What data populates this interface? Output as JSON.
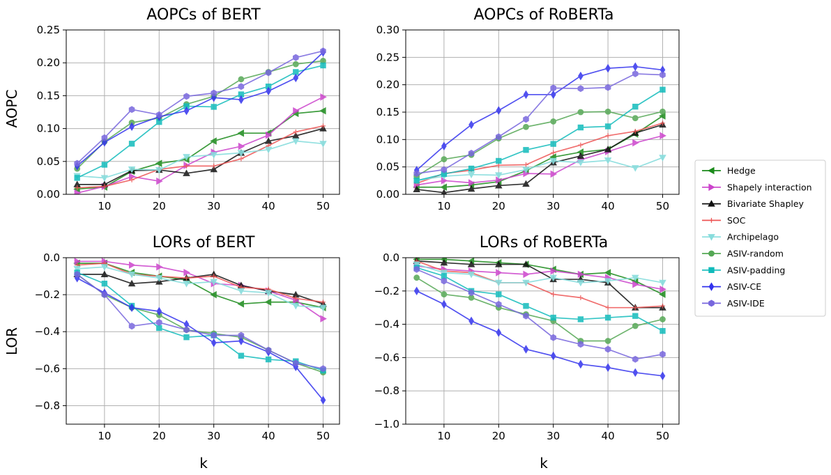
{
  "chart_data": [
    {
      "type": "line",
      "title": "AOPCs of BERT",
      "xlabel": "",
      "ylabel": "AOPC",
      "xlim": [
        3,
        53
      ],
      "ylim": [
        0,
        0.25
      ],
      "xticks": [
        10,
        20,
        30,
        40,
        50
      ],
      "xtick_labels": [
        "10",
        "20",
        "30",
        "40",
        "50"
      ],
      "yticks": [
        0,
        0.05,
        0.1,
        0.15,
        0.2,
        0.25
      ],
      "ytick_labels": [
        "0.00",
        "0.05",
        "0.10",
        "0.15",
        "0.20",
        "0.25"
      ],
      "grid": true,
      "x": [
        5,
        10,
        15,
        20,
        25,
        30,
        35,
        40,
        45,
        50
      ],
      "series": [
        {
          "name": "Hedge",
          "values": [
            0.008,
            0.011,
            0.035,
            0.047,
            0.053,
            0.081,
            0.093,
            0.093,
            0.123,
            0.127
          ]
        },
        {
          "name": "Shapely interaction",
          "values": [
            0.002,
            0.012,
            0.027,
            0.02,
            0.044,
            0.064,
            0.073,
            0.09,
            0.127,
            0.148
          ]
        },
        {
          "name": "Bivariate Shapley",
          "values": [
            0.015,
            0.015,
            0.036,
            0.037,
            0.032,
            0.038,
            0.063,
            0.081,
            0.089,
            0.1
          ]
        },
        {
          "name": "SOC",
          "values": [
            0.01,
            0.012,
            0.022,
            0.038,
            0.043,
            0.043,
            0.054,
            0.074,
            0.095,
            0.104
          ]
        },
        {
          "name": "Archipelago",
          "values": [
            0.028,
            0.025,
            0.038,
            0.037,
            0.057,
            0.06,
            0.063,
            0.068,
            0.081,
            0.077
          ]
        },
        {
          "name": "ASIV-random",
          "values": [
            0.039,
            0.08,
            0.109,
            0.116,
            0.137,
            0.149,
            0.175,
            0.186,
            0.198,
            0.203
          ]
        },
        {
          "name": "ASIV-padding",
          "values": [
            0.025,
            0.045,
            0.077,
            0.11,
            0.134,
            0.133,
            0.152,
            0.164,
            0.186,
            0.196
          ]
        },
        {
          "name": "ASIV-CE",
          "values": [
            0.043,
            0.079,
            0.103,
            0.118,
            0.127,
            0.147,
            0.144,
            0.157,
            0.177,
            0.216
          ]
        },
        {
          "name": "ASIV-IDE",
          "values": [
            0.047,
            0.086,
            0.129,
            0.121,
            0.149,
            0.154,
            0.164,
            0.185,
            0.208,
            0.218
          ]
        }
      ]
    },
    {
      "type": "line",
      "title": "AOPCs of RoBERTa",
      "xlabel": "",
      "ylabel": "",
      "xlim": [
        3,
        53
      ],
      "ylim": [
        0,
        0.3
      ],
      "xticks": [
        10,
        20,
        30,
        40,
        50
      ],
      "xtick_labels": [
        "10",
        "20",
        "30",
        "40",
        "50"
      ],
      "yticks": [
        0,
        0.05,
        0.1,
        0.15,
        0.2,
        0.25,
        0.3
      ],
      "ytick_labels": [
        "0.00",
        "0.05",
        "0.10",
        "0.15",
        "0.20",
        "0.25",
        "0.30"
      ],
      "grid": true,
      "x": [
        5,
        10,
        15,
        20,
        25,
        30,
        35,
        40,
        45,
        50
      ],
      "series": [
        {
          "name": "Hedge",
          "values": [
            0.013,
            0.013,
            0.017,
            0.023,
            0.043,
            0.068,
            0.077,
            0.082,
            0.11,
            0.143
          ]
        },
        {
          "name": "Shapely interaction",
          "values": [
            0.017,
            0.025,
            0.021,
            0.026,
            0.038,
            0.037,
            0.063,
            0.078,
            0.094,
            0.107
          ]
        },
        {
          "name": "Bivariate Shapley",
          "values": [
            0.009,
            0.003,
            0.01,
            0.016,
            0.019,
            0.058,
            0.07,
            0.082,
            0.112,
            0.127
          ]
        },
        {
          "name": "SOC",
          "values": [
            0.02,
            0.038,
            0.044,
            0.053,
            0.054,
            0.076,
            0.09,
            0.107,
            0.115,
            0.13
          ]
        },
        {
          "name": "Archipelago",
          "values": [
            0.025,
            0.033,
            0.036,
            0.035,
            0.045,
            0.061,
            0.058,
            0.062,
            0.048,
            0.067
          ]
        },
        {
          "name": "ASIV-random",
          "values": [
            0.033,
            0.064,
            0.072,
            0.102,
            0.123,
            0.133,
            0.15,
            0.151,
            0.139,
            0.151
          ]
        },
        {
          "name": "ASIV-padding",
          "values": [
            0.025,
            0.037,
            0.047,
            0.061,
            0.081,
            0.092,
            0.122,
            0.124,
            0.16,
            0.191
          ]
        },
        {
          "name": "ASIV-CE",
          "values": [
            0.044,
            0.088,
            0.127,
            0.153,
            0.182,
            0.182,
            0.216,
            0.23,
            0.233,
            0.227
          ]
        },
        {
          "name": "ASIV-IDE",
          "values": [
            0.038,
            0.045,
            0.075,
            0.105,
            0.137,
            0.194,
            0.193,
            0.195,
            0.22,
            0.218
          ]
        }
      ]
    },
    {
      "type": "line",
      "title": "LORs of BERT",
      "xlabel": "k",
      "ylabel": "LOR",
      "xlim": [
        3,
        53
      ],
      "ylim": [
        -0.9,
        0
      ],
      "xticks": [
        10,
        20,
        30,
        40,
        50
      ],
      "xtick_labels": [
        "10",
        "20",
        "30",
        "40",
        "50"
      ],
      "yticks": [
        -0.8,
        -0.6,
        -0.4,
        -0.2,
        0.0
      ],
      "ytick_labels": [
        "−0.8",
        "−0.6",
        "−0.4",
        "−0.2",
        "0.0"
      ],
      "grid": true,
      "x": [
        5,
        10,
        15,
        20,
        25,
        30,
        35,
        40,
        45,
        50
      ],
      "series": [
        {
          "name": "Hedge",
          "values": [
            -0.03,
            -0.03,
            -0.08,
            -0.1,
            -0.12,
            -0.2,
            -0.25,
            -0.24,
            -0.24,
            -0.27
          ]
        },
        {
          "name": "Shapely interaction",
          "values": [
            -0.02,
            -0.02,
            -0.04,
            -0.05,
            -0.08,
            -0.14,
            -0.15,
            -0.18,
            -0.23,
            -0.33
          ]
        },
        {
          "name": "Bivariate Shapley",
          "values": [
            -0.09,
            -0.09,
            -0.14,
            -0.13,
            -0.11,
            -0.09,
            -0.15,
            -0.18,
            -0.2,
            -0.25
          ]
        },
        {
          "name": "SOC",
          "values": [
            -0.04,
            -0.03,
            -0.09,
            -0.1,
            -0.11,
            -0.1,
            -0.16,
            -0.17,
            -0.22,
            -0.24
          ]
        },
        {
          "name": "Archipelago",
          "values": [
            -0.06,
            -0.05,
            -0.09,
            -0.11,
            -0.14,
            -0.13,
            -0.18,
            -0.19,
            -0.26,
            -0.27
          ]
        },
        {
          "name": "ASIV-random",
          "values": [
            -0.09,
            -0.2,
            -0.27,
            -0.31,
            -0.39,
            -0.41,
            -0.43,
            -0.5,
            -0.57,
            -0.62
          ]
        },
        {
          "name": "ASIV-padding",
          "values": [
            -0.08,
            -0.14,
            -0.26,
            -0.38,
            -0.43,
            -0.42,
            -0.53,
            -0.55,
            -0.56,
            -0.61
          ]
        },
        {
          "name": "ASIV-CE",
          "values": [
            -0.11,
            -0.19,
            -0.27,
            -0.29,
            -0.36,
            -0.46,
            -0.45,
            -0.51,
            -0.59,
            -0.77
          ]
        },
        {
          "name": "ASIV-IDE",
          "values": [
            -0.09,
            -0.2,
            -0.37,
            -0.35,
            -0.39,
            -0.42,
            -0.42,
            -0.5,
            -0.57,
            -0.6
          ]
        }
      ]
    },
    {
      "type": "line",
      "title": "LORs of RoBERTa",
      "xlabel": "k",
      "ylabel": "",
      "xlim": [
        3,
        53
      ],
      "ylim": [
        -1.0,
        0
      ],
      "xticks": [
        10,
        20,
        30,
        40,
        50
      ],
      "xtick_labels": [
        "10",
        "20",
        "30",
        "40",
        "50"
      ],
      "yticks": [
        -1.0,
        -0.8,
        -0.6,
        -0.4,
        -0.2,
        0.0
      ],
      "ytick_labels": [
        "−1.0",
        "−0.8",
        "−0.6",
        "−0.4",
        "−0.2",
        "0.0"
      ],
      "grid": true,
      "x": [
        5,
        10,
        15,
        20,
        25,
        30,
        35,
        40,
        45,
        50
      ],
      "series": [
        {
          "name": "Hedge",
          "values": [
            -0.01,
            -0.01,
            -0.02,
            -0.03,
            -0.04,
            -0.07,
            -0.1,
            -0.09,
            -0.14,
            -0.22
          ]
        },
        {
          "name": "Shapely interaction",
          "values": [
            -0.05,
            -0.07,
            -0.08,
            -0.09,
            -0.1,
            -0.08,
            -0.1,
            -0.12,
            -0.16,
            -0.19
          ]
        },
        {
          "name": "Bivariate Shapley",
          "values": [
            -0.02,
            -0.03,
            -0.04,
            -0.04,
            -0.04,
            -0.13,
            -0.13,
            -0.15,
            -0.3,
            -0.3
          ]
        },
        {
          "name": "SOC",
          "values": [
            -0.02,
            -0.08,
            -0.09,
            -0.15,
            -0.15,
            -0.22,
            -0.24,
            -0.3,
            -0.3,
            -0.29
          ]
        },
        {
          "name": "Archipelago",
          "values": [
            -0.04,
            -0.09,
            -0.1,
            -0.15,
            -0.15,
            -0.12,
            -0.15,
            -0.14,
            -0.12,
            -0.15
          ]
        },
        {
          "name": "ASIV-random",
          "values": [
            -0.12,
            -0.22,
            -0.24,
            -0.3,
            -0.34,
            -0.38,
            -0.5,
            -0.5,
            -0.41,
            -0.37
          ]
        },
        {
          "name": "ASIV-padding",
          "values": [
            -0.06,
            -0.11,
            -0.2,
            -0.22,
            -0.29,
            -0.36,
            -0.37,
            -0.36,
            -0.35,
            -0.44
          ]
        },
        {
          "name": "ASIV-CE",
          "values": [
            -0.2,
            -0.28,
            -0.38,
            -0.45,
            -0.55,
            -0.59,
            -0.64,
            -0.66,
            -0.69,
            -0.71
          ]
        },
        {
          "name": "ASIV-IDE",
          "values": [
            -0.07,
            -0.14,
            -0.21,
            -0.28,
            -0.35,
            -0.48,
            -0.52,
            -0.55,
            -0.61,
            -0.58
          ]
        }
      ]
    }
  ],
  "legend": {
    "placement": "right",
    "entries": [
      {
        "name": "Hedge",
        "color": "#1a8a1a",
        "marker": "triangle-left"
      },
      {
        "name": "Shapely interaction",
        "color": "#cc44cc",
        "marker": "triangle-right"
      },
      {
        "name": "Bivariate Shapley",
        "color": "#111111",
        "marker": "triangle-up"
      },
      {
        "name": "SOC",
        "color": "#ee5555",
        "marker": "plus"
      },
      {
        "name": "Archipelago",
        "color": "#88dddd",
        "marker": "triangle-down"
      },
      {
        "name": "ASIV-random",
        "color": "#55a855",
        "marker": "circle"
      },
      {
        "name": "ASIV-padding",
        "color": "#11bbbb",
        "marker": "square"
      },
      {
        "name": "ASIV-CE",
        "color": "#3333ee",
        "marker": "diamond"
      },
      {
        "name": "ASIV-IDE",
        "color": "#7766dd",
        "marker": "hexagon"
      }
    ]
  }
}
